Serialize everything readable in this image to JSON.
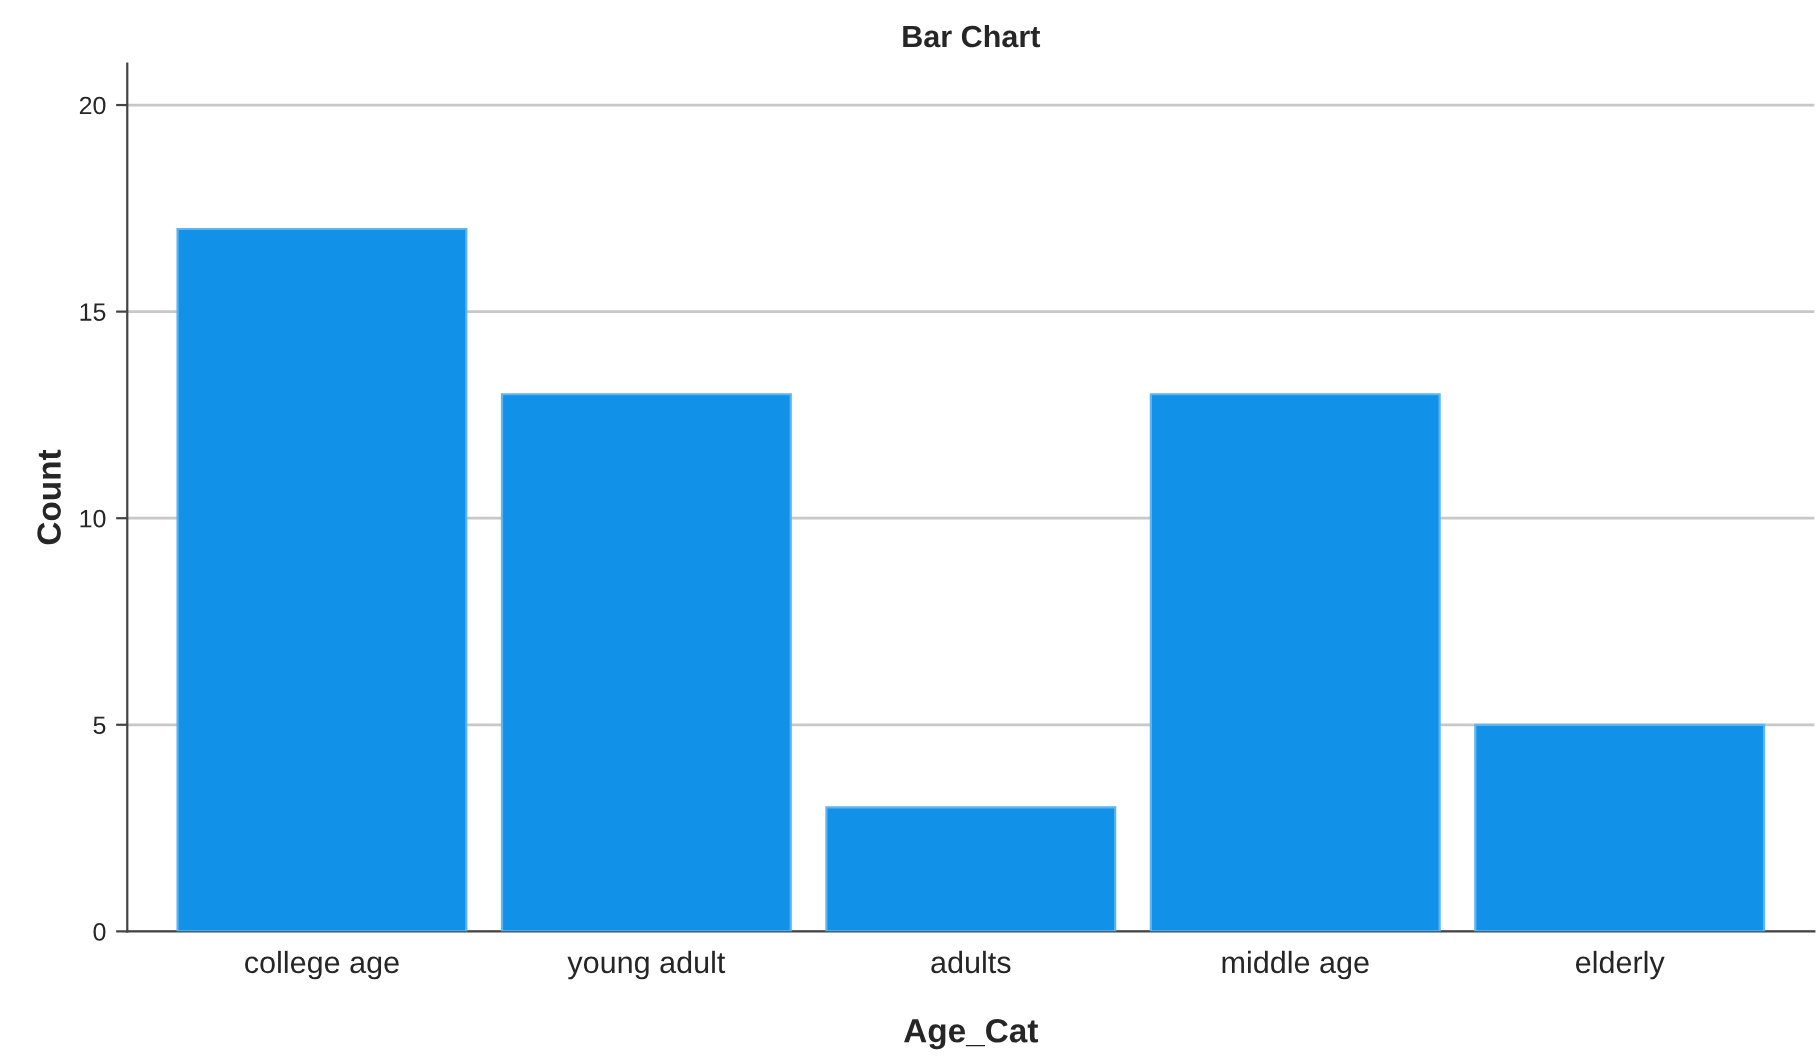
{
  "chart_data": {
    "type": "bar",
    "title": "Bar Chart",
    "xlabel": "Age_Cat",
    "ylabel": "Count",
    "categories": [
      "college age",
      "young adult",
      "adults",
      "middle age",
      "elderly"
    ],
    "values": [
      17,
      13,
      3,
      13,
      5
    ],
    "color": "#1192e8",
    "ylim": [
      0,
      21
    ],
    "yticks": [
      0,
      5,
      10,
      15,
      20
    ],
    "grid": "y"
  }
}
